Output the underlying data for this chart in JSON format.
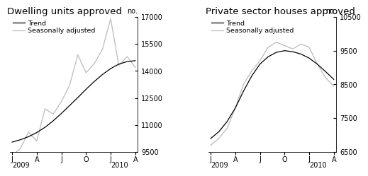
{
  "title1": "Dwelling units approved",
  "title2": "Private sector houses approved",
  "ylabel": "no.",
  "legend_trend": "Trend",
  "legend_sa": "Seasonally adjusted",
  "chart1": {
    "ylim": [
      9500,
      17000
    ],
    "yticks": [
      9500,
      11000,
      12500,
      14000,
      15500,
      17000
    ],
    "trend": [
      10050,
      10180,
      10350,
      10580,
      10870,
      11230,
      11640,
      12080,
      12520,
      12980,
      13410,
      13800,
      14130,
      14380,
      14520,
      14570
    ],
    "sa": [
      9300,
      9700,
      10600,
      10100,
      11900,
      11600,
      12300,
      13200,
      14900,
      13900,
      14400,
      15200,
      16900,
      14300,
      14800,
      14200
    ]
  },
  "chart2": {
    "ylim": [
      6500,
      10500
    ],
    "yticks": [
      6500,
      7500,
      8500,
      9500,
      10500
    ],
    "trend": [
      6900,
      7100,
      7400,
      7800,
      8300,
      8750,
      9100,
      9320,
      9450,
      9500,
      9470,
      9400,
      9280,
      9100,
      8880,
      8650
    ],
    "sa": [
      6700,
      6900,
      7200,
      7800,
      8500,
      8900,
      9200,
      9600,
      9750,
      9650,
      9550,
      9700,
      9600,
      9100,
      8700,
      8450
    ]
  },
  "x_tick_labels": [
    "J",
    "A",
    "J",
    "O",
    "J",
    "A"
  ],
  "x_year_labels": [
    "2009",
    "2010"
  ],
  "trend_color": "#000000",
  "sa_color": "#bbbbbb",
  "background_color": "#ffffff",
  "title_fontsize": 9.5,
  "tick_fontsize": 7,
  "legend_fontsize": 6.8
}
